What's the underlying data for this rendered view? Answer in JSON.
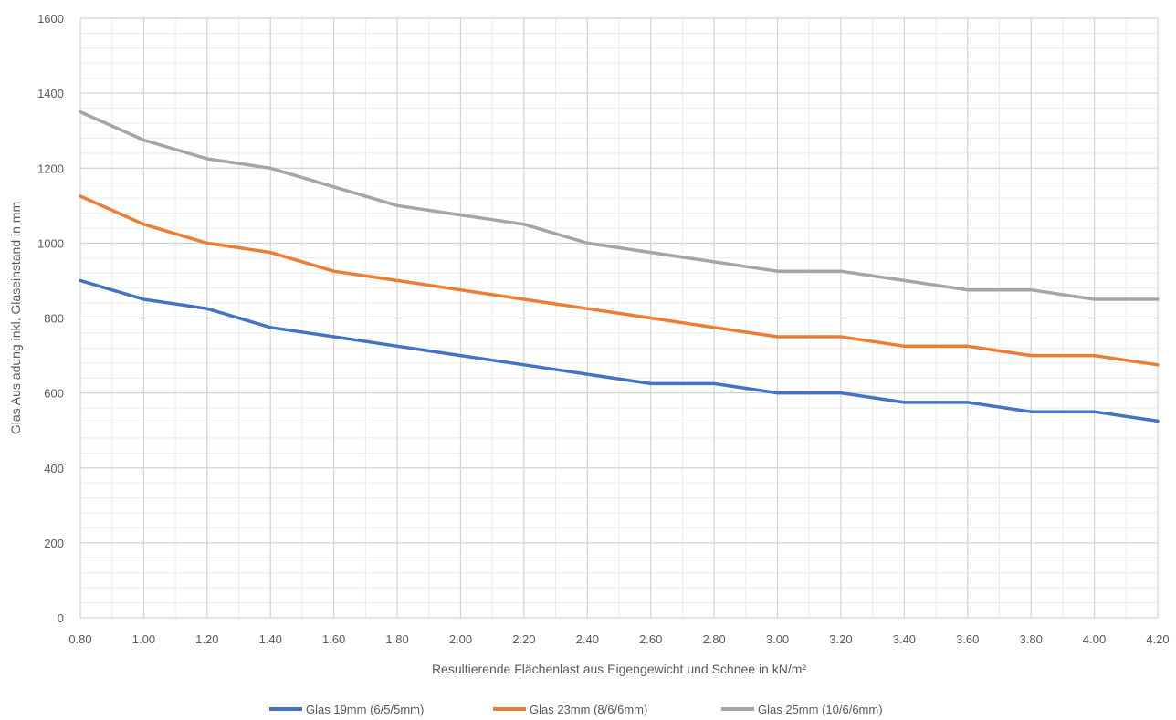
{
  "chart_data": {
    "type": "line",
    "xlabel": "Resultierende Flächenlast aus Eigengewicht und Schnee in kN/m²",
    "ylabel": "Glas Aus adung inkl. Glaseinstand in mm",
    "xlim": [
      0.8,
      4.2
    ],
    "ylim": [
      0,
      1600
    ],
    "x_ticks": [
      "0.80",
      "1.00",
      "1.20",
      "1.40",
      "1.60",
      "1.80",
      "2.00",
      "2.20",
      "2.40",
      "2.60",
      "2.80",
      "3.00",
      "3.20",
      "3.40",
      "3.60",
      "3.80",
      "4.00",
      "4.20"
    ],
    "y_ticks": [
      "0",
      "200",
      "400",
      "600",
      "800",
      "1000",
      "1200",
      "1400",
      "1600"
    ],
    "grid": true,
    "minor_grid": true,
    "legend_position": "bottom",
    "x": [
      0.8,
      1.0,
      1.2,
      1.4,
      1.6,
      1.8,
      2.0,
      2.2,
      2.4,
      2.6,
      2.8,
      3.0,
      3.2,
      3.4,
      3.6,
      3.8,
      4.0,
      4.2
    ],
    "series": [
      {
        "name": "Glas 19mm (6/5/5mm)",
        "color": "#4472C4",
        "values": [
          900,
          850,
          825,
          775,
          750,
          725,
          700,
          675,
          650,
          625,
          625,
          600,
          600,
          575,
          575,
          550,
          550,
          525
        ]
      },
      {
        "name": "Glas 23mm (8/6/6mm)",
        "color": "#ED7D31",
        "values": [
          1125,
          1050,
          1000,
          975,
          925,
          900,
          875,
          850,
          825,
          800,
          775,
          750,
          750,
          725,
          725,
          700,
          700,
          675
        ]
      },
      {
        "name": "Glas 25mm (10/6/6mm)",
        "color": "#A5A5A5",
        "values": [
          1350,
          1275,
          1225,
          1200,
          1150,
          1100,
          1075,
          1050,
          1000,
          975,
          950,
          925,
          925,
          900,
          875,
          875,
          850,
          850
        ]
      }
    ]
  }
}
